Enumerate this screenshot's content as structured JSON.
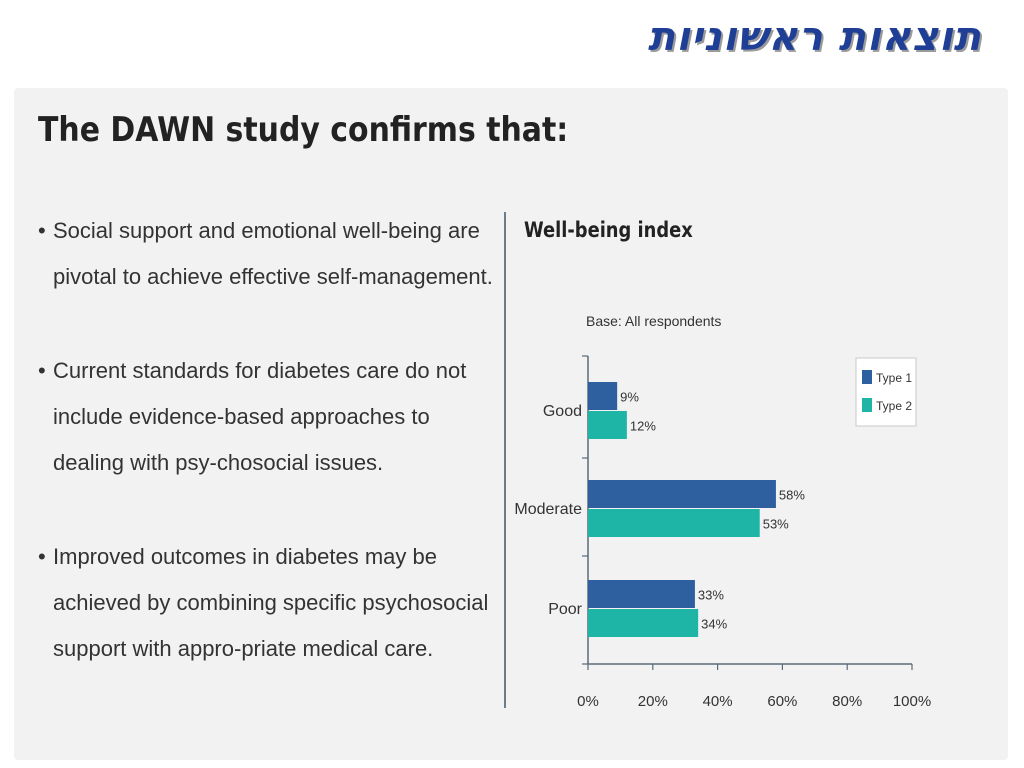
{
  "page": {
    "title": "תוצאות ראשוניות"
  },
  "content": {
    "heading": "The DAWN study confirms that:",
    "bullets": [
      "Social support and emotional well-being are pivotal to achieve effective self-management.",
      "Current standards for diabetes care do not include evidence-based approaches to dealing with psy-chosocial issues.",
      "Improved outcomes in diabetes may be achieved by combining specific psychosocial support with appro-priate medical care."
    ],
    "bullet_glyph": "•"
  },
  "colors": {
    "title": "#1f3f96",
    "type1": "#2e5f9e",
    "type2": "#1fb5a6",
    "axis": "#5a6a78",
    "panel_bg": "#f2f2f2"
  },
  "chart_data": {
    "type": "bar",
    "orientation": "horizontal",
    "title": "Well-being index",
    "subtitle": "Base: All respondents",
    "categories": [
      "Good",
      "Moderate",
      "Poor"
    ],
    "series": [
      {
        "name": "Type 1",
        "values": [
          9,
          58,
          33
        ],
        "labels": [
          "9%",
          "58%",
          "33%"
        ]
      },
      {
        "name": "Type 2",
        "values": [
          12,
          53,
          34
        ],
        "labels": [
          "12%",
          "53%",
          "34%"
        ]
      }
    ],
    "xlim": [
      0,
      100
    ],
    "xticks": [
      0,
      20,
      40,
      60,
      80,
      100
    ],
    "xtick_labels": [
      "0%",
      "20%",
      "40%",
      "60%",
      "80%",
      "100%"
    ],
    "legend_position": "top-right",
    "grid": false
  }
}
